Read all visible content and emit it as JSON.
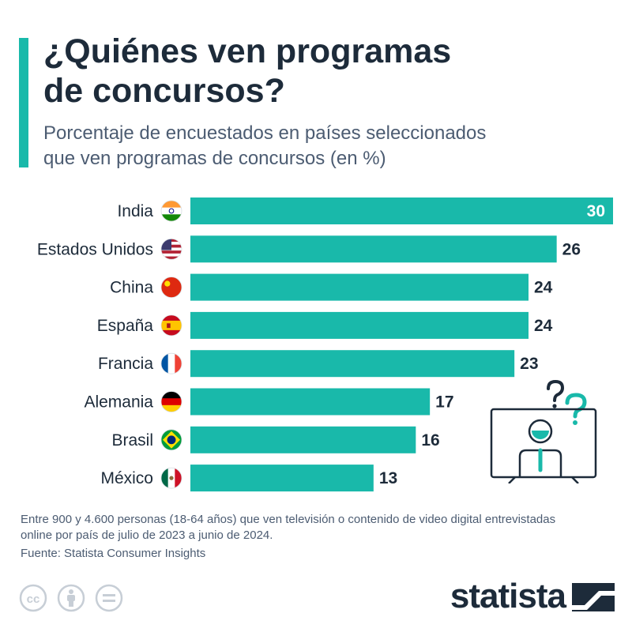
{
  "title": [
    "¿Quiénes ven programas",
    "de concursos?"
  ],
  "subtitle": [
    "Porcentaje de encuestados en países seleccionados",
    "que ven programas de concursos (en %)"
  ],
  "chart_data": {
    "type": "bar",
    "orientation": "horizontal",
    "categories": [
      "India",
      "Estados Unidos",
      "China",
      "España",
      "Francia",
      "Alemania",
      "Brasil",
      "México"
    ],
    "flags": [
      "india-flag-icon",
      "usa-flag-icon",
      "china-flag-icon",
      "spain-flag-icon",
      "france-flag-icon",
      "germany-flag-icon",
      "brazil-flag-icon",
      "mexico-flag-icon"
    ],
    "values": [
      30,
      26,
      24,
      24,
      23,
      17,
      16,
      13
    ],
    "xlim": [
      0,
      30
    ],
    "bar_color": "#19b9aa",
    "grid": false,
    "legend": "none"
  },
  "note": "Entre 900 y 4.600 personas (18-64 años) que ven televisión o contenido de video digital entrevistadas online por país de julio de 2023 a junio de 2024.",
  "source": "Fuente: Statista Consumer Insights",
  "brand": "statista",
  "colors": {
    "accent": "#19b9aa",
    "text": "#1d2b3a",
    "muted": "#4c5c72"
  },
  "icons": [
    "cc-icon",
    "by-person-icon",
    "nd-equal-icon",
    "tv-presenter-icon",
    "statista-logo-icon"
  ]
}
